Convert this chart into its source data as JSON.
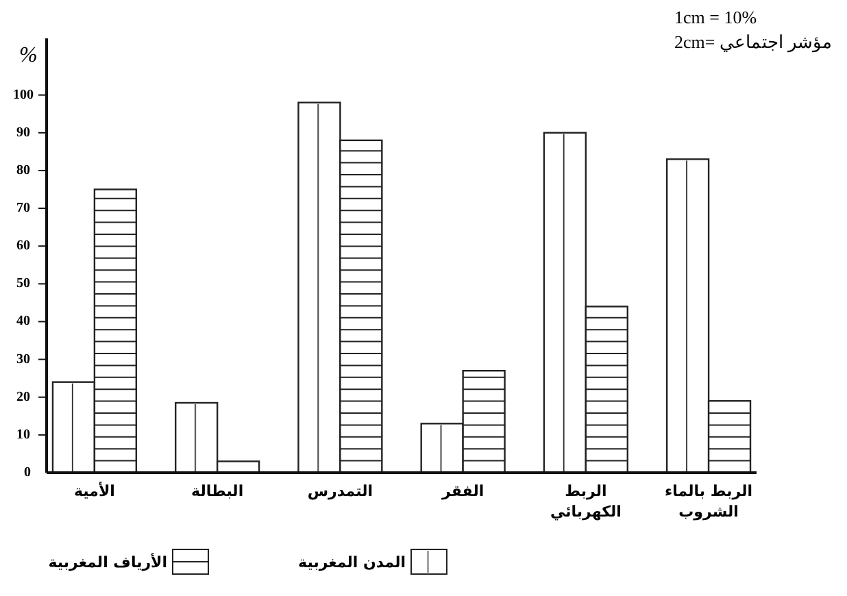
{
  "chart_data": {
    "type": "bar",
    "ylabel": "%",
    "categories": [
      "الأمية",
      "البطالة",
      "التمدرس",
      "الفقر",
      "الربط\nالكهربائي",
      "الربط بالماء\nالشروب"
    ],
    "series": [
      {
        "name": "المدن المغربية",
        "color": "#ffffff",
        "values": [
          24,
          18.5,
          98,
          13,
          90,
          83
        ]
      },
      {
        "name": "الأرياف المغربية",
        "color": "#ffffff",
        "values": [
          75,
          3,
          88,
          27,
          44,
          19
        ]
      }
    ],
    "ylim": [
      0,
      115
    ],
    "yticks": [
      0,
      10,
      20,
      30,
      40,
      50,
      60,
      70,
      80,
      90,
      100
    ],
    "grid": false,
    "legend": "bottom",
    "annotations": [
      "1cm = 10%",
      "2cm= مؤشر اجتماعي"
    ]
  }
}
